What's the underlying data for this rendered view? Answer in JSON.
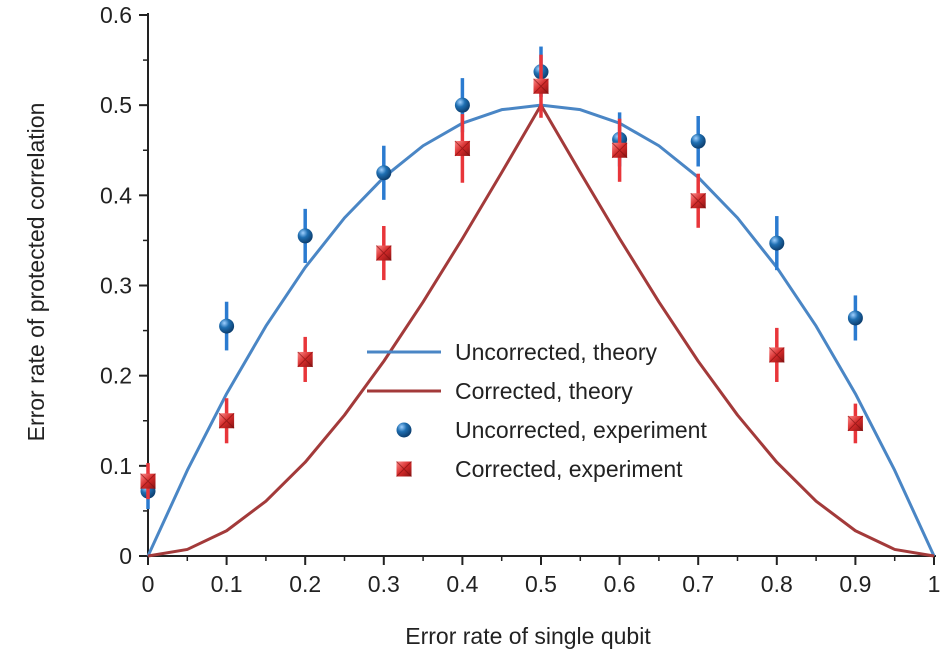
{
  "chart_data": {
    "type": "line",
    "title": "",
    "xlabel": "Error rate of single qubit",
    "ylabel": "Error rate of protected correlation",
    "xlim": [
      0,
      1
    ],
    "ylim": [
      0,
      0.6
    ],
    "xticks": [
      "0",
      "0.1",
      "0.2",
      "0.3",
      "0.4",
      "0.5",
      "0.6",
      "0.7",
      "0.8",
      "0.9",
      "1"
    ],
    "yticks": [
      "0",
      "0.1",
      "0.2",
      "0.3",
      "0.4",
      "0.5",
      "0.6"
    ],
    "grid": false,
    "legend_position": "center",
    "series": [
      {
        "name": "Uncorrected, theory",
        "kind": "line",
        "color": "#4a86c5",
        "x": [
          0,
          0.05,
          0.1,
          0.15,
          0.2,
          0.25,
          0.3,
          0.35,
          0.4,
          0.45,
          0.5,
          0.55,
          0.6,
          0.65,
          0.7,
          0.75,
          0.8,
          0.85,
          0.9,
          0.95,
          1
        ],
        "y": [
          0,
          0.095,
          0.18,
          0.255,
          0.32,
          0.375,
          0.42,
          0.455,
          0.48,
          0.495,
          0.5,
          0.495,
          0.48,
          0.455,
          0.42,
          0.375,
          0.32,
          0.255,
          0.18,
          0.095,
          0
        ]
      },
      {
        "name": "Corrected, theory",
        "kind": "line",
        "color": "#a33a3a",
        "x": [
          0,
          0.05,
          0.1,
          0.15,
          0.2,
          0.25,
          0.3,
          0.35,
          0.4,
          0.45,
          0.5,
          0.55,
          0.6,
          0.65,
          0.7,
          0.75,
          0.8,
          0.85,
          0.9,
          0.95,
          1
        ],
        "y": [
          0,
          0.0073,
          0.028,
          0.0608,
          0.104,
          0.1563,
          0.216,
          0.2818,
          0.352,
          0.4253,
          0.5,
          0.4253,
          0.352,
          0.2818,
          0.216,
          0.1563,
          0.104,
          0.0608,
          0.028,
          0.0073,
          0
        ]
      },
      {
        "name": "Uncorrected, experiment",
        "kind": "scatter",
        "marker": "circle",
        "color": "#1f6fb2",
        "errorbar_color": "#2b7bd0",
        "x": [
          0,
          0.1,
          0.2,
          0.3,
          0.4,
          0.5,
          0.6,
          0.7,
          0.8,
          0.9
        ],
        "y": [
          0.072,
          0.255,
          0.355,
          0.425,
          0.5,
          0.537,
          0.462,
          0.46,
          0.347,
          0.264
        ],
        "err": [
          0.02,
          0.027,
          0.03,
          0.03,
          0.03,
          0.028,
          0.03,
          0.028,
          0.03,
          0.025
        ]
      },
      {
        "name": "Corrected, experiment",
        "kind": "scatter",
        "marker": "square",
        "color": "#d42a2a",
        "errorbar_color": "#e8353a",
        "x": [
          0,
          0.1,
          0.2,
          0.3,
          0.4,
          0.5,
          0.6,
          0.7,
          0.8,
          0.9
        ],
        "y": [
          0.083,
          0.15,
          0.218,
          0.336,
          0.452,
          0.521,
          0.45,
          0.394,
          0.223,
          0.147
        ],
        "err": [
          0.02,
          0.025,
          0.025,
          0.03,
          0.038,
          0.035,
          0.035,
          0.03,
          0.03,
          0.022
        ]
      }
    ]
  }
}
